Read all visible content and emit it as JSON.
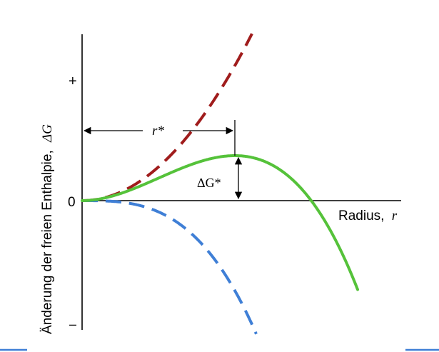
{
  "ylabel_prefix": "Änderung der freien Enthalpie,",
  "ylabel_symbol": "ΔG",
  "xlabel_prefix": "Radius,",
  "xlabel_symbol": "r",
  "tick_plus": "+",
  "tick_zero": "0",
  "tick_minus": "–",
  "rstar_label": "r*",
  "dgstar_label": "ΔG*",
  "colors": {
    "surface_term": "#a01c1c",
    "volume_term": "#3f7fd6",
    "total": "#55c23a",
    "axis": "#000000",
    "accent_line": "#3f7fd6"
  }
}
